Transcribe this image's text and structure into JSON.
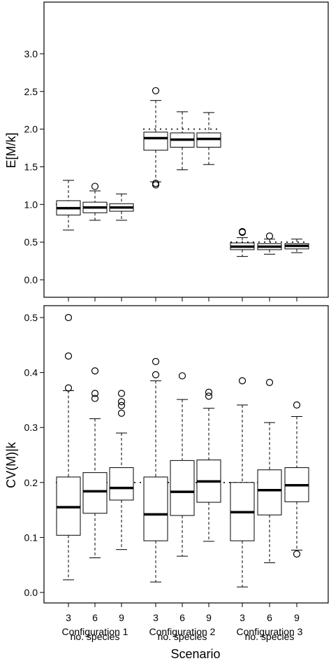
{
  "chart_data": [
    {
      "type": "boxplot",
      "ylabel": "E[M/k]",
      "ylim": [
        0,
        3.0
      ],
      "yticks": [
        "0.0",
        "0.5",
        "1.0",
        "1.5",
        "2.0",
        "2.5",
        "3.0"
      ],
      "boxes": [
        {
          "category": "3",
          "group": 1,
          "whisker_low": 0.66,
          "q1": 0.86,
          "median": 0.95,
          "q3": 1.05,
          "whisker_high": 1.32,
          "outliers": [],
          "reference": 1.0
        },
        {
          "category": "6",
          "group": 1,
          "whisker_low": 0.79,
          "q1": 0.89,
          "median": 0.96,
          "q3": 1.03,
          "whisker_high": 1.18,
          "outliers": [
            1.24
          ],
          "reference": 1.0
        },
        {
          "category": "9",
          "group": 1,
          "whisker_low": 0.79,
          "q1": 0.91,
          "median": 0.96,
          "q3": 1.01,
          "whisker_high": 1.14,
          "outliers": [],
          "reference": 1.0
        },
        {
          "category": "3",
          "group": 2,
          "whisker_low": 1.3,
          "q1": 1.72,
          "median": 1.88,
          "q3": 1.96,
          "whisker_high": 2.38,
          "outliers": [
            1.26,
            1.28,
            2.51
          ],
          "reference": 2.0
        },
        {
          "category": "6",
          "group": 2,
          "whisker_low": 1.46,
          "q1": 1.76,
          "median": 1.86,
          "q3": 1.95,
          "whisker_high": 2.23,
          "outliers": [],
          "reference": 2.0
        },
        {
          "category": "9",
          "group": 2,
          "whisker_low": 1.53,
          "q1": 1.76,
          "median": 1.87,
          "q3": 1.95,
          "whisker_high": 2.22,
          "outliers": [],
          "reference": 2.0
        },
        {
          "category": "3",
          "group": 3,
          "whisker_low": 0.31,
          "q1": 0.4,
          "median": 0.44,
          "q3": 0.49,
          "whisker_high": 0.56,
          "outliers": [
            0.63,
            0.64
          ],
          "reference": 0.5
        },
        {
          "category": "6",
          "group": 3,
          "whisker_low": 0.34,
          "q1": 0.4,
          "median": 0.44,
          "q3": 0.48,
          "whisker_high": 0.54,
          "outliers": [
            0.58
          ],
          "reference": 0.5
        },
        {
          "category": "9",
          "group": 3,
          "whisker_low": 0.36,
          "q1": 0.41,
          "median": 0.45,
          "q3": 0.48,
          "whisker_high": 0.54,
          "outliers": [],
          "reference": 0.5
        }
      ]
    },
    {
      "type": "boxplot",
      "ylabel": "CV(M)|k",
      "xlabel": "Scenario",
      "ylim": [
        0,
        0.5
      ],
      "yticks": [
        "0.0",
        "0.1",
        "0.2",
        "0.3",
        "0.4",
        "0.5"
      ],
      "categories": [
        "3",
        "6",
        "9",
        "3",
        "6",
        "9",
        "3",
        "6",
        "9"
      ],
      "groups": [
        {
          "line1": "Configuration 1",
          "line2": "no. species"
        },
        {
          "line1": "Configuration 2",
          "line2": "no. species"
        },
        {
          "line1": "Configuration 3",
          "line2": "no. species"
        }
      ],
      "reference": 0.2,
      "boxes": [
        {
          "category": "3",
          "group": 1,
          "whisker_low": 0.023,
          "q1": 0.104,
          "median": 0.155,
          "q3": 0.21,
          "whisker_high": 0.367,
          "outliers": [
            0.372,
            0.43,
            0.5
          ]
        },
        {
          "category": "6",
          "group": 1,
          "whisker_low": 0.063,
          "q1": 0.144,
          "median": 0.184,
          "q3": 0.218,
          "whisker_high": 0.316,
          "outliers": [
            0.353,
            0.362,
            0.403
          ]
        },
        {
          "category": "9",
          "group": 1,
          "whisker_low": 0.078,
          "q1": 0.168,
          "median": 0.19,
          "q3": 0.227,
          "whisker_high": 0.29,
          "outliers": [
            0.326,
            0.34,
            0.347,
            0.362
          ]
        },
        {
          "category": "3",
          "group": 2,
          "whisker_low": 0.019,
          "q1": 0.094,
          "median": 0.142,
          "q3": 0.21,
          "whisker_high": 0.385,
          "outliers": [
            0.396,
            0.42
          ]
        },
        {
          "category": "6",
          "group": 2,
          "whisker_low": 0.066,
          "q1": 0.14,
          "median": 0.183,
          "q3": 0.24,
          "whisker_high": 0.351,
          "outliers": [
            0.394
          ]
        },
        {
          "category": "9",
          "group": 2,
          "whisker_low": 0.093,
          "q1": 0.164,
          "median": 0.202,
          "q3": 0.241,
          "whisker_high": 0.335,
          "outliers": [
            0.357,
            0.364
          ]
        },
        {
          "category": "3",
          "group": 3,
          "whisker_low": 0.01,
          "q1": 0.094,
          "median": 0.146,
          "q3": 0.2,
          "whisker_high": 0.341,
          "outliers": [
            0.385
          ]
        },
        {
          "category": "6",
          "group": 3,
          "whisker_low": 0.054,
          "q1": 0.141,
          "median": 0.186,
          "q3": 0.223,
          "whisker_high": 0.309,
          "outliers": [
            0.382
          ]
        },
        {
          "category": "9",
          "group": 3,
          "whisker_low": 0.077,
          "q1": 0.165,
          "median": 0.195,
          "q3": 0.227,
          "whisker_high": 0.32,
          "outliers": [
            0.07,
            0.341
          ]
        }
      ]
    }
  ]
}
